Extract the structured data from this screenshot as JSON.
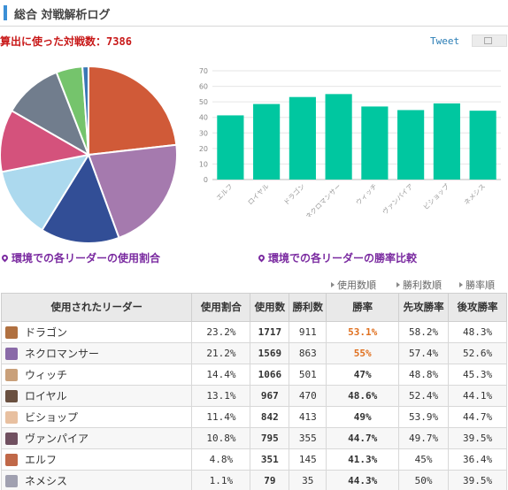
{
  "header": {
    "title": "総合 対戦解析ログ"
  },
  "total": {
    "label": "算出に使った対戦数：",
    "value": "7386"
  },
  "tweet": {
    "label": "Tweet"
  },
  "captions": {
    "pie": "環境での各リーダーの使用割合",
    "bar": "環境での各リーダーの勝率比較"
  },
  "sort_links": [
    "使用数順",
    "勝利数順",
    "勝率順"
  ],
  "table": {
    "headers": [
      "使用されたリーダー",
      "使用割合",
      "使用数",
      "勝利数",
      "勝率",
      "先攻勝率",
      "後攻勝率"
    ],
    "rows": [
      {
        "leader": "ドラゴン",
        "share": "23.2%",
        "used": "1717",
        "wins": "911",
        "rate": "53.1%",
        "first": "58.2%",
        "second": "48.3%",
        "avatar": "#b07040",
        "hi": true
      },
      {
        "leader": "ネクロマンサー",
        "share": "21.2%",
        "used": "1569",
        "wins": "863",
        "rate": "55%",
        "first": "57.4%",
        "second": "52.6%",
        "avatar": "#8a6aa8",
        "hi": true
      },
      {
        "leader": "ウィッチ",
        "share": "14.4%",
        "used": "1066",
        "wins": "501",
        "rate": "47%",
        "first": "48.8%",
        "second": "45.3%",
        "avatar": "#c9a07a",
        "hi": false
      },
      {
        "leader": "ロイヤル",
        "share": "13.1%",
        "used": "967",
        "wins": "470",
        "rate": "48.6%",
        "first": "52.4%",
        "second": "44.1%",
        "avatar": "#6a5040",
        "hi": false
      },
      {
        "leader": "ビショップ",
        "share": "11.4%",
        "used": "842",
        "wins": "413",
        "rate": "49%",
        "first": "53.9%",
        "second": "44.7%",
        "avatar": "#e8c0a0",
        "hi": false
      },
      {
        "leader": "ヴァンパイア",
        "share": "10.8%",
        "used": "795",
        "wins": "355",
        "rate": "44.7%",
        "first": "49.7%",
        "second": "39.5%",
        "avatar": "#705060",
        "hi": false
      },
      {
        "leader": "エルフ",
        "share": "4.8%",
        "used": "351",
        "wins": "145",
        "rate": "41.3%",
        "first": "45%",
        "second": "36.4%",
        "avatar": "#c06848",
        "hi": false
      },
      {
        "leader": "ネメシス",
        "share": "1.1%",
        "used": "79",
        "wins": "35",
        "rate": "44.3%",
        "first": "50%",
        "second": "39.5%",
        "avatar": "#a0a0b0",
        "hi": false
      }
    ]
  },
  "chart_data": [
    {
      "type": "pie",
      "slices": [
        {
          "name": "ドラゴン",
          "value": 23.2,
          "color": "#d05a38"
        },
        {
          "name": "ネクロマンサー",
          "value": 21.2,
          "color": "#a57aae"
        },
        {
          "name": "ウィッチ",
          "value": 14.4,
          "color": "#324e96"
        },
        {
          "name": "ロイヤル",
          "value": 13.1,
          "color": "#acd9ee"
        },
        {
          "name": "ビショップ",
          "value": 11.4,
          "color": "#d4527c"
        },
        {
          "name": "ヴァンパイア",
          "value": 10.8,
          "color": "#717d8d"
        },
        {
          "name": "エルフ",
          "value": 4.8,
          "color": "#75c46c"
        },
        {
          "name": "ネメシス",
          "value": 1.1,
          "color": "#3a78b5"
        }
      ]
    },
    {
      "type": "bar",
      "categories": [
        "エルフ",
        "ロイヤル",
        "ドラゴン",
        "ネクロマンサー",
        "ウィッチ",
        "ヴァンパイア",
        "ビショップ",
        "ネメシス"
      ],
      "values": [
        41.3,
        48.6,
        53.1,
        55,
        47,
        44.7,
        49,
        44.3
      ],
      "color": "#00c7a0",
      "ylim": [
        0,
        70
      ],
      "yticks": [
        0,
        10,
        20,
        30,
        40,
        50,
        60,
        70
      ],
      "grid": true
    }
  ]
}
